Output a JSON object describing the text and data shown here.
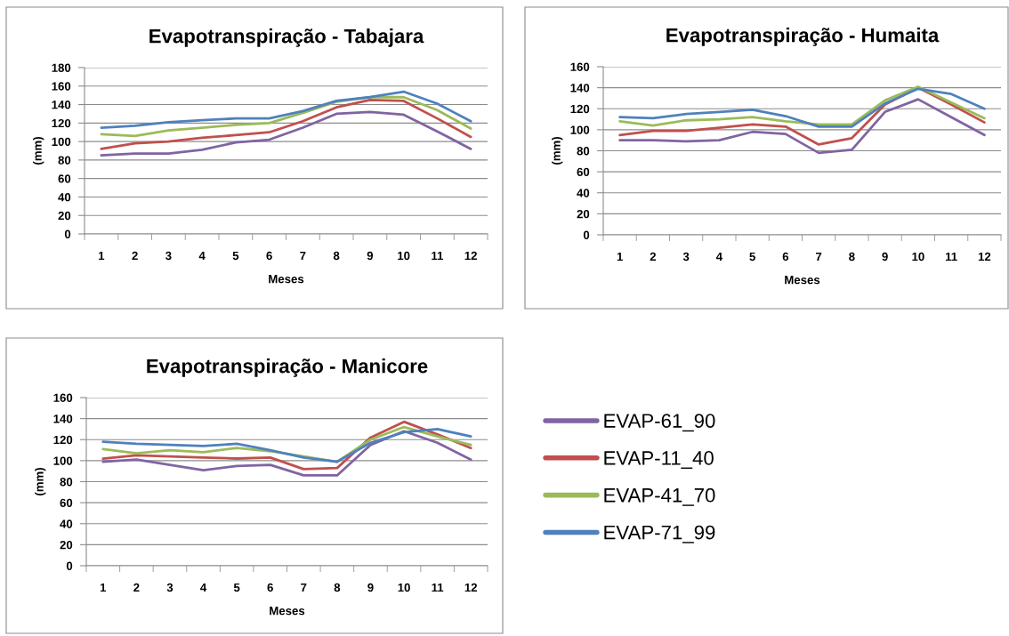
{
  "chart_data": [
    {
      "type": "line",
      "title": "Evapotranspiração - Tabajara",
      "xlabel": "Meses",
      "ylabel": "(mm)",
      "categories": [
        "1",
        "2",
        "3",
        "4",
        "5",
        "6",
        "7",
        "8",
        "9",
        "10",
        "11",
        "12"
      ],
      "series": [
        {
          "color": "#8064a2",
          "values": [
            85,
            87,
            87,
            91,
            99,
            102,
            115,
            130,
            132,
            129,
            111,
            92
          ]
        },
        {
          "color": "#c0504d",
          "values": [
            92,
            98,
            100,
            104,
            107,
            110,
            122,
            137,
            145,
            144,
            125,
            105
          ]
        },
        {
          "color": "#9bbb59",
          "values": [
            108,
            106,
            112,
            115,
            118,
            120,
            131,
            143,
            148,
            148,
            134,
            114
          ]
        },
        {
          "color": "#4f81bd",
          "values": [
            115,
            117,
            121,
            123,
            125,
            125,
            133,
            144,
            148,
            154,
            141,
            122
          ]
        }
      ],
      "ylim": [
        0,
        180
      ],
      "yticks": [
        0,
        20,
        40,
        60,
        80,
        100,
        120,
        140,
        160,
        180
      ],
      "grid": "y",
      "legend": false
    },
    {
      "type": "line",
      "title": "Evapotranspiração - Humaita",
      "xlabel": "Meses",
      "ylabel": "(mm)",
      "categories": [
        "1",
        "2",
        "3",
        "4",
        "5",
        "6",
        "7",
        "8",
        "9",
        "10",
        "11",
        "12"
      ],
      "series": [
        {
          "color": "#8064a2",
          "values": [
            90,
            90,
            89,
            90,
            98,
            96,
            78,
            81,
            117,
            129,
            112,
            95
          ]
        },
        {
          "color": "#c0504d",
          "values": [
            95,
            99,
            99,
            102,
            105,
            103,
            86,
            92,
            124,
            140,
            124,
            107
          ]
        },
        {
          "color": "#9bbb59",
          "values": [
            108,
            104,
            109,
            110,
            112,
            108,
            105,
            105,
            128,
            141,
            126,
            111
          ]
        },
        {
          "color": "#4f81bd",
          "values": [
            112,
            111,
            115,
            117,
            119,
            113,
            103,
            103,
            125,
            139,
            134,
            120
          ]
        }
      ],
      "ylim": [
        0,
        160
      ],
      "yticks": [
        0,
        20,
        40,
        60,
        80,
        100,
        120,
        140,
        160
      ],
      "grid": "y",
      "legend": false
    },
    {
      "type": "line",
      "title": "Evapotranspiração - Manicore",
      "xlabel": "Meses",
      "ylabel": "(mm)",
      "categories": [
        "1",
        "2",
        "3",
        "4",
        "5",
        "6",
        "7",
        "8",
        "9",
        "10",
        "11",
        "12"
      ],
      "series": [
        {
          "name": "EVAP-61_90",
          "color": "#8064a2",
          "values": [
            99,
            101,
            96,
            91,
            95,
            96,
            86,
            86,
            115,
            128,
            117,
            101
          ]
        },
        {
          "name": "EVAP-11_40",
          "color": "#c0504d",
          "values": [
            102,
            105,
            104,
            103,
            102,
            103,
            92,
            93,
            122,
            137,
            125,
            112
          ]
        },
        {
          "name": "EVAP-41_70",
          "color": "#9bbb59",
          "values": [
            111,
            107,
            110,
            108,
            112,
            109,
            104,
            99,
            120,
            132,
            123,
            115
          ]
        },
        {
          "name": "EVAP-71_99",
          "color": "#4f81bd",
          "values": [
            118,
            116,
            115,
            114,
            116,
            110,
            103,
            99,
            117,
            127,
            130,
            123
          ]
        }
      ],
      "ylim": [
        0,
        160
      ],
      "yticks": [
        0,
        20,
        40,
        60,
        80,
        100,
        120,
        140,
        160
      ],
      "grid": "y",
      "legend": "right"
    }
  ]
}
